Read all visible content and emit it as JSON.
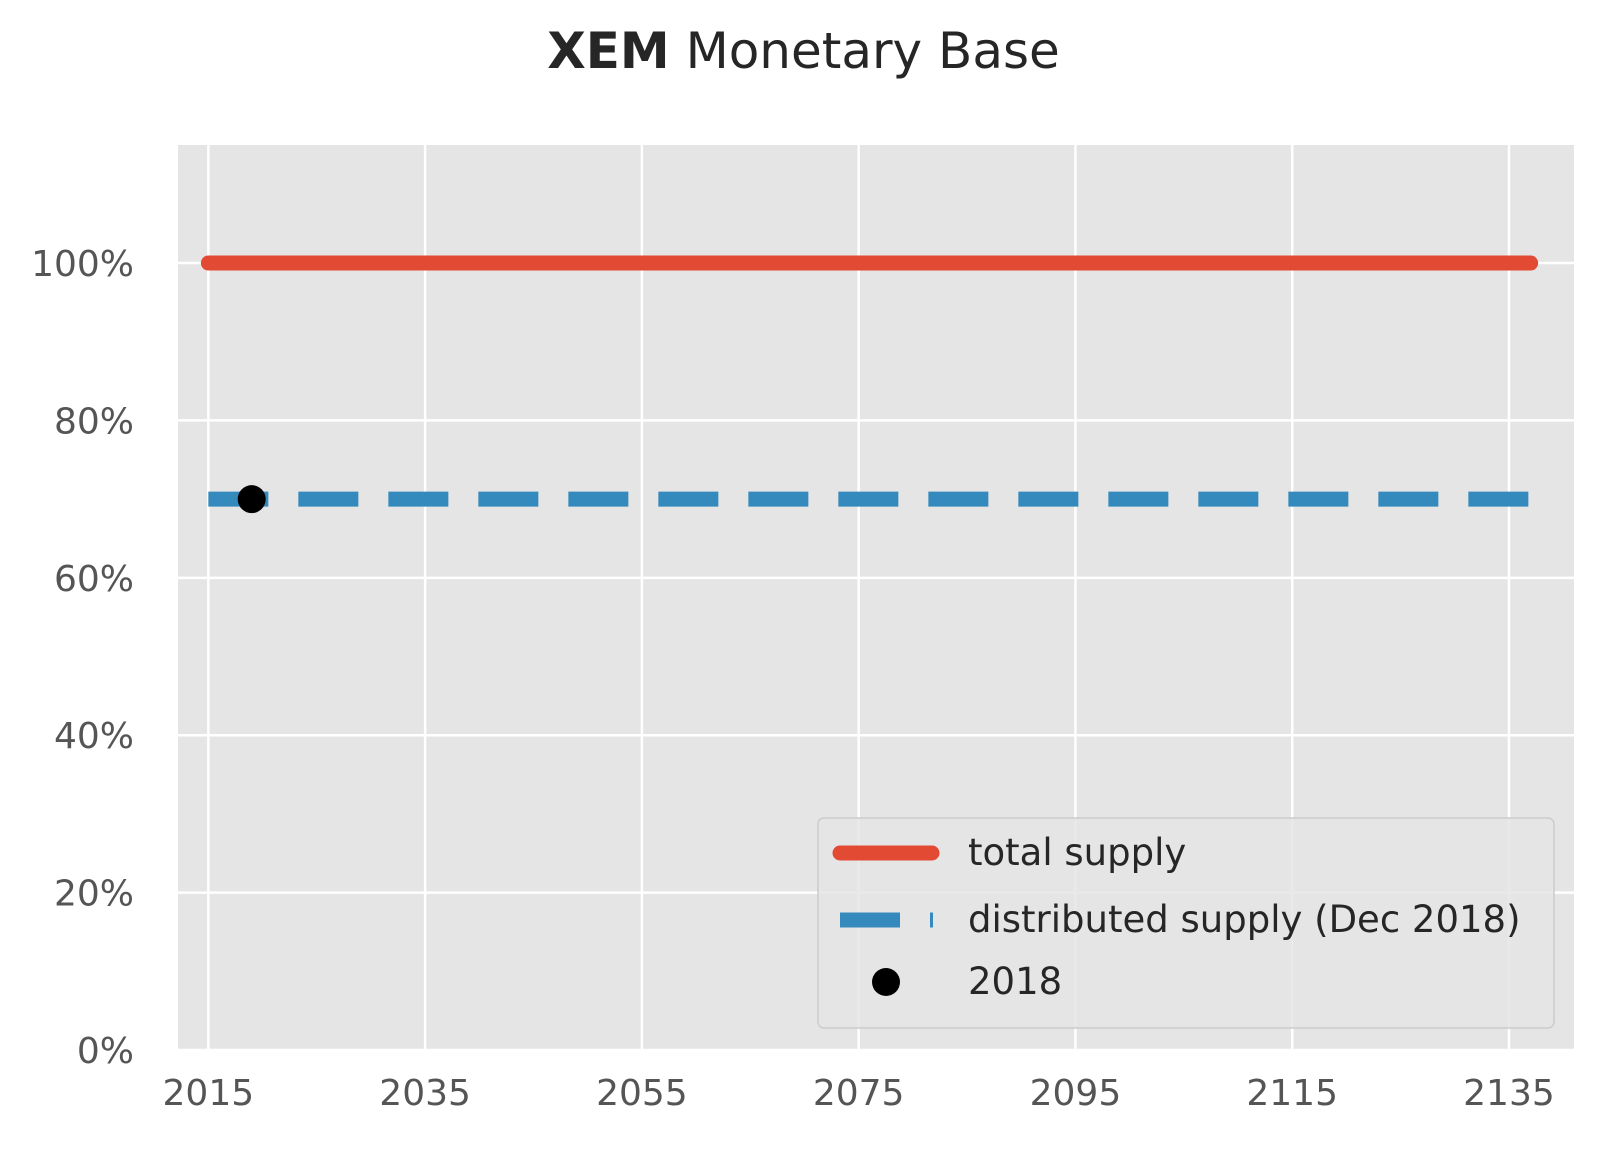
{
  "chart_data": {
    "type": "line",
    "title_bold": "XEM",
    "title_rest": " Monetary Base",
    "xlabel": "",
    "ylabel": "",
    "xlim": [
      2012.2,
      2141
    ],
    "ylim": [
      0,
      1.15
    ],
    "x_ticks": [
      2015,
      2035,
      2055,
      2075,
      2095,
      2115,
      2135
    ],
    "y_ticks": [
      0,
      0.2,
      0.4,
      0.6,
      0.8,
      1.0
    ],
    "y_tick_labels": [
      "0%",
      "20%",
      "40%",
      "60%",
      "80%",
      "100%"
    ],
    "grid": true,
    "legend_position": "lower-right",
    "series": [
      {
        "name": "total supply",
        "style": "solid",
        "color": "#E24A33",
        "x": [
          2015,
          2137
        ],
        "y": [
          1.0,
          1.0
        ]
      },
      {
        "name": "distributed supply (Dec 2018)",
        "style": "dashed",
        "color": "#348ABD",
        "x": [
          2015,
          2137
        ],
        "y": [
          0.7,
          0.7
        ]
      },
      {
        "name": "2018",
        "style": "marker",
        "color": "#000000",
        "x": [
          2019
        ],
        "y": [
          0.7
        ]
      }
    ]
  }
}
